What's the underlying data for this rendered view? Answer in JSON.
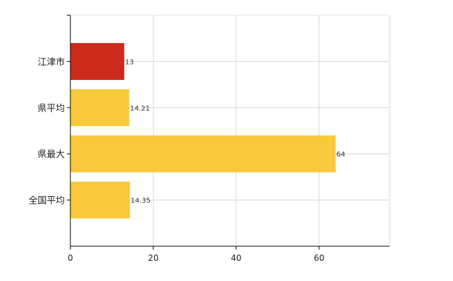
{
  "chart_data": {
    "type": "bar",
    "orientation": "horizontal",
    "categories": [
      "江津市",
      "県平均",
      "県最大",
      "全国平均"
    ],
    "values": [
      13,
      14.21,
      64,
      14.35
    ],
    "data_labels": [
      "13",
      "14.21",
      "64",
      "14.35"
    ],
    "bar_colors": [
      "#cc2a1a",
      "#f8c93a",
      "#f8c93a",
      "#f8c93a"
    ],
    "xlim": [
      0,
      77
    ],
    "x_ticks": [
      0,
      20,
      40,
      60
    ],
    "grid": true,
    "title": "",
    "xlabel": "",
    "ylabel": ""
  }
}
